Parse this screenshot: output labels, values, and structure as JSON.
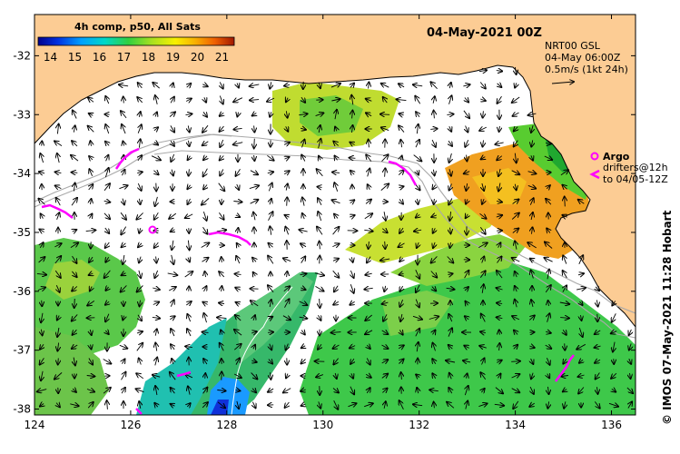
{
  "map": {
    "title": "04-May-2021 00Z",
    "colorbar": {
      "title": "4h comp, p50, All Sats",
      "ticks": [
        "14",
        "15",
        "16",
        "17",
        "18",
        "19",
        "20",
        "21"
      ],
      "min": 13.5,
      "max": 21.5
    },
    "current_info": {
      "line1": "NRT00 GSL",
      "line2": "04-May 06:00Z",
      "line3": "0.5m/s (1kt 24h)"
    },
    "argo_legend": {
      "argo_label": "Argo",
      "drifters_line1": "drifters@12h",
      "drifters_line2": "to 04/05-12Z"
    },
    "credit": "© IMOS 07-May-2021 11:28 Hobart",
    "x_ticks": [
      "124",
      "126",
      "128",
      "130",
      "132",
      "134",
      "136"
    ],
    "y_ticks": [
      "-32",
      "-33",
      "-34",
      "-35",
      "-36",
      "-37",
      "-38"
    ],
    "lon_range": [
      124,
      136.5
    ],
    "lat_range": [
      -38.1,
      -31.3
    ],
    "colors": {
      "land": "#fccc94",
      "coast": "#000000",
      "isobath": "#a9a9a9",
      "drifter": "#ff00ff"
    }
  }
}
